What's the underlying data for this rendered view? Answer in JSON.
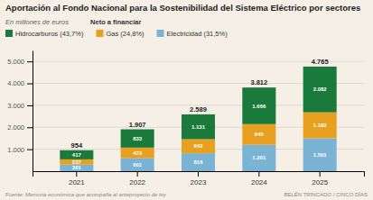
{
  "chart_data": {
    "type": "bar",
    "stacked": true,
    "title": "Aportación al Fondo Nacional para la Sostenibilidad del Sistema Eléctrico por sectores",
    "subtitle": "En millones de euros",
    "legend_title": "Neto a financiar",
    "source": "Fuente: Memoria económica que acompaña al anteproyecto de ley",
    "author": "BELÉN TRINCADO / CINCO DÍAS",
    "background_color": "#f5efe6",
    "categories": [
      "2021",
      "2022",
      "2023",
      "2024",
      "2025"
    ],
    "series": [
      {
        "name": "Electricidad (31,5%)",
        "color": "#7ab3d4",
        "values": [
          301,
          601,
          816,
          1201,
          1501
        ],
        "value_labels": [
          "301",
          "601",
          "816",
          "1.201",
          "1.501"
        ]
      },
      {
        "name": "Gas (24,8%)",
        "color": "#e8a020",
        "values": [
          237,
          473,
          642,
          945,
          1182
        ],
        "value_labels": [
          "237",
          "473",
          "642",
          "945",
          "1.182"
        ]
      },
      {
        "name": "Hidrocarburos (43,7%)",
        "color": "#1a7a3c",
        "values": [
          417,
          833,
          1131,
          1666,
          2082
        ],
        "value_labels": [
          "417",
          "833",
          "1.131",
          "1.666",
          "2.082"
        ]
      }
    ],
    "totals": {
      "values": [
        954,
        1907,
        2589,
        3812,
        4765
      ],
      "value_labels": [
        "954",
        "1.907",
        "2.589",
        "3.812",
        "4.765"
      ]
    },
    "ylim": [
      0,
      5500
    ],
    "yticks": [
      {
        "value": 1000,
        "label": "1.000"
      },
      {
        "value": 2000,
        "label": "2.000"
      },
      {
        "value": 3000,
        "label": "3.000"
      },
      {
        "value": 4000,
        "label": "4.000"
      },
      {
        "value": 5000,
        "label": "5.000"
      }
    ],
    "grid": true,
    "legend": "top",
    "data_labels": true
  }
}
